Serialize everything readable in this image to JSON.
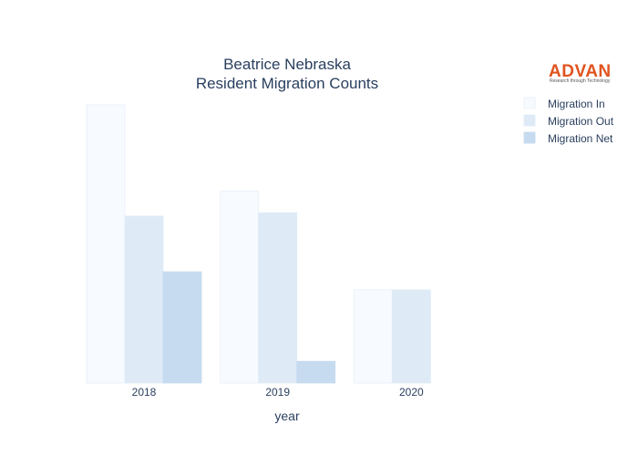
{
  "chart_data": {
    "type": "bar",
    "title_lines": [
      "Beatrice Nebraska",
      "Resident Migration Counts"
    ],
    "xlabel": "year",
    "ylabel": "",
    "categories": [
      "2018",
      "2019",
      "2020"
    ],
    "series": [
      {
        "name": "Migration In",
        "values": [
          1000,
          690,
          335
        ],
        "color": "#f7fbff",
        "stroke": "#e8f0f8"
      },
      {
        "name": "Migration Out",
        "values": [
          600,
          612,
          335
        ],
        "color": "#deebf7",
        "stroke": "#deebf7"
      },
      {
        "name": "Migration Net",
        "values": [
          400,
          78,
          0
        ],
        "color": "#c6dbef",
        "stroke": "#c6dbef"
      }
    ],
    "ylim": [
      0,
      1000
    ],
    "y_ticks_shown": false,
    "grid": false,
    "legend_position": "top-right"
  },
  "logo": {
    "name": "ADVAN",
    "tagline": "Research through Technology"
  }
}
